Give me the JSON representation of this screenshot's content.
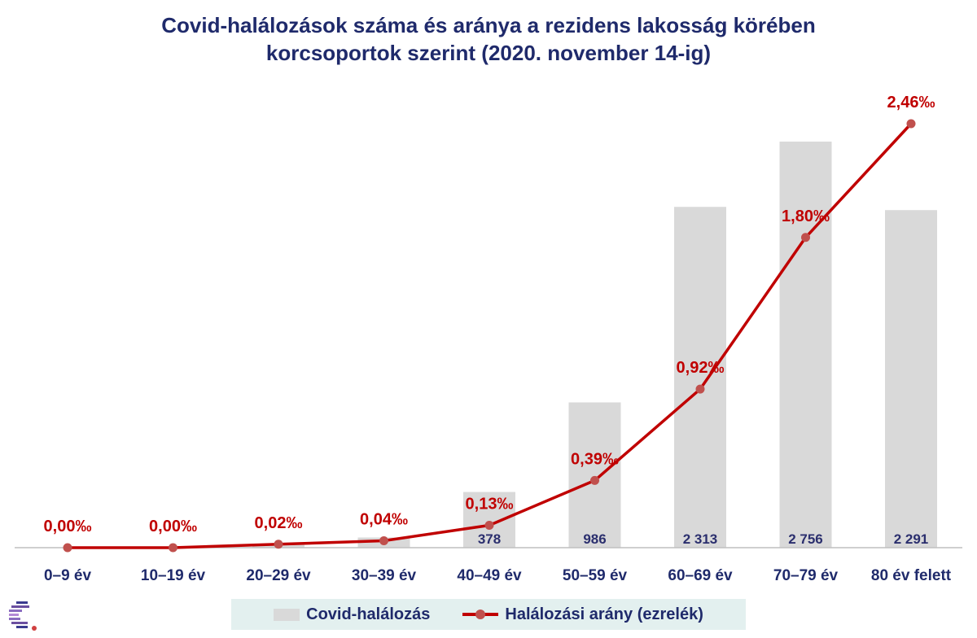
{
  "chart_data": {
    "type": "bar",
    "title_line1": "Covid-halálozások száma és aránya a rezidens lakosság körében",
    "title_line2": "korcsoportok szerint (2020. november 14-ig)",
    "categories": [
      "0–9 év",
      "10–19 év",
      "20–29 év",
      "30–39 év",
      "40–49 év",
      "50–59 év",
      "60–69 év",
      "70–79 év",
      "80 év felett"
    ],
    "series": [
      {
        "name": "Covid-halálozás",
        "type": "bar",
        "values": [
          0,
          1,
          19,
          69,
          378,
          986,
          2313,
          2756,
          2291
        ],
        "data_labels": [
          "",
          "",
          "",
          "",
          "378",
          "986",
          "2 313",
          "2 756",
          "2 291"
        ],
        "color": "#d9d9d9"
      },
      {
        "name": "Halálozási arány (ezrelék)",
        "type": "line",
        "values": [
          0.0,
          0.0,
          0.02,
          0.04,
          0.13,
          0.39,
          0.92,
          1.8,
          2.46
        ],
        "data_labels": [
          "0,00‰",
          "0,00‰",
          "0,02‰",
          "0,04‰",
          "0,13‰",
          "0,39‰",
          "0,92‰",
          "1,80‰",
          "2,46‰"
        ],
        "color": "#c00000",
        "marker_color": "#c0504d"
      }
    ],
    "legend": {
      "position": "bottom",
      "bar_label": "Covid-halálozás",
      "line_label": "Halálozási arány (ezrelék)"
    },
    "grid": false
  }
}
